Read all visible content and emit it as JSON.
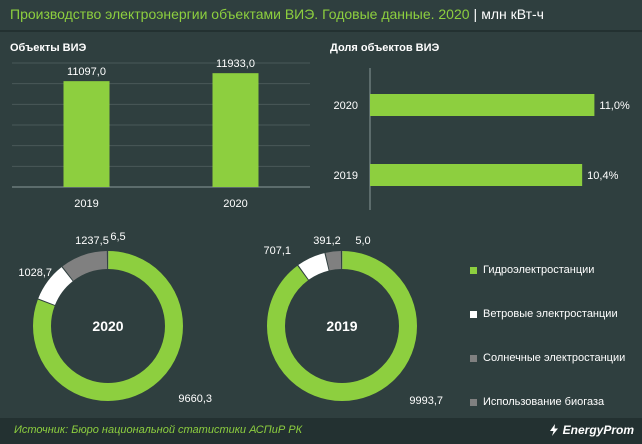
{
  "header": {
    "title": "Производство электроэнергии объектами ВИЭ. Годовые данные. 2020",
    "separator": "|",
    "unit": "млн кВт-ч"
  },
  "colors": {
    "background": "#2f3f3f",
    "accent_green": "#8dcf3f",
    "white": "#ffffff",
    "gray": "#808080",
    "gridline": "#4a5959"
  },
  "chart_data": [
    {
      "type": "bar",
      "title": "Объекты ВИЭ",
      "categories": [
        "2019",
        "2020"
      ],
      "values": [
        11097.0,
        11933.0
      ],
      "value_labels": [
        "11097,0",
        "11933,0"
      ],
      "ylim": [
        0,
        13000
      ]
    },
    {
      "type": "bar",
      "orientation": "horizontal",
      "title": "Доля объектов ВИЭ",
      "categories": [
        "2020",
        "2019"
      ],
      "values": [
        11.0,
        10.4
      ],
      "value_labels": [
        "11,0%",
        "10,4%"
      ],
      "xlim": [
        0,
        12.5
      ]
    },
    {
      "type": "pie",
      "style": "donut",
      "center_label": "2020",
      "series": [
        {
          "name": "Гидроэлектростанции",
          "value": 9660.3,
          "label": "9660,3"
        },
        {
          "name": "Ветровые электростанции",
          "value": 1028.7,
          "label": "1028,7"
        },
        {
          "name": "Солнечные электростанции",
          "value": 1237.5,
          "label": "1237,5"
        },
        {
          "name": "Использование биогаза",
          "value": 6.5,
          "label": "6,5"
        }
      ]
    },
    {
      "type": "pie",
      "style": "donut",
      "center_label": "2019",
      "series": [
        {
          "name": "Гидроэлектростанции",
          "value": 9993.7,
          "label": "9993,7"
        },
        {
          "name": "Ветровые электростанции",
          "value": 707.1,
          "label": "707,1"
        },
        {
          "name": "Солнечные электростанции",
          "value": 391.2,
          "label": "391,2"
        },
        {
          "name": "Использование биогаза",
          "value": 5.0,
          "label": "5,0"
        }
      ]
    }
  ],
  "legend": [
    {
      "label": "Гидроэлектростанции",
      "color": "#8dcf3f"
    },
    {
      "label": "Ветровые электростанции",
      "color": "#ffffff"
    },
    {
      "label": "Солнечные электростанции",
      "color": "#808080"
    },
    {
      "label": "Использование биогаза",
      "color": "#808080"
    }
  ],
  "footer": {
    "source": "Источник: Бюро национальной статистики АСПиР РК",
    "brand": "EnergyProm"
  }
}
